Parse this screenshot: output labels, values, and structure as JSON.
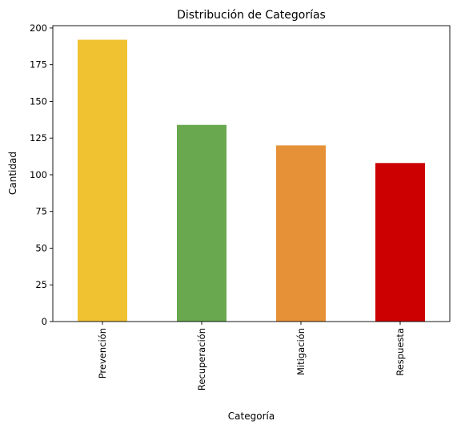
{
  "chart_data": {
    "type": "bar",
    "title": "Distribución de Categorías",
    "xlabel": "Categoría",
    "ylabel": "Cantidad",
    "categories": [
      "Prevención",
      "Recuperación",
      "Mitigación",
      "Respuesta"
    ],
    "values": [
      192,
      134,
      120,
      108
    ],
    "colors": [
      "#f0c232",
      "#6aa84f",
      "#e69138",
      "#cc0000"
    ],
    "ylim": [
      0,
      201.6
    ],
    "yticks": [
      0,
      25,
      50,
      75,
      100,
      125,
      150,
      175,
      200
    ],
    "grid": false,
    "legend": "none"
  }
}
